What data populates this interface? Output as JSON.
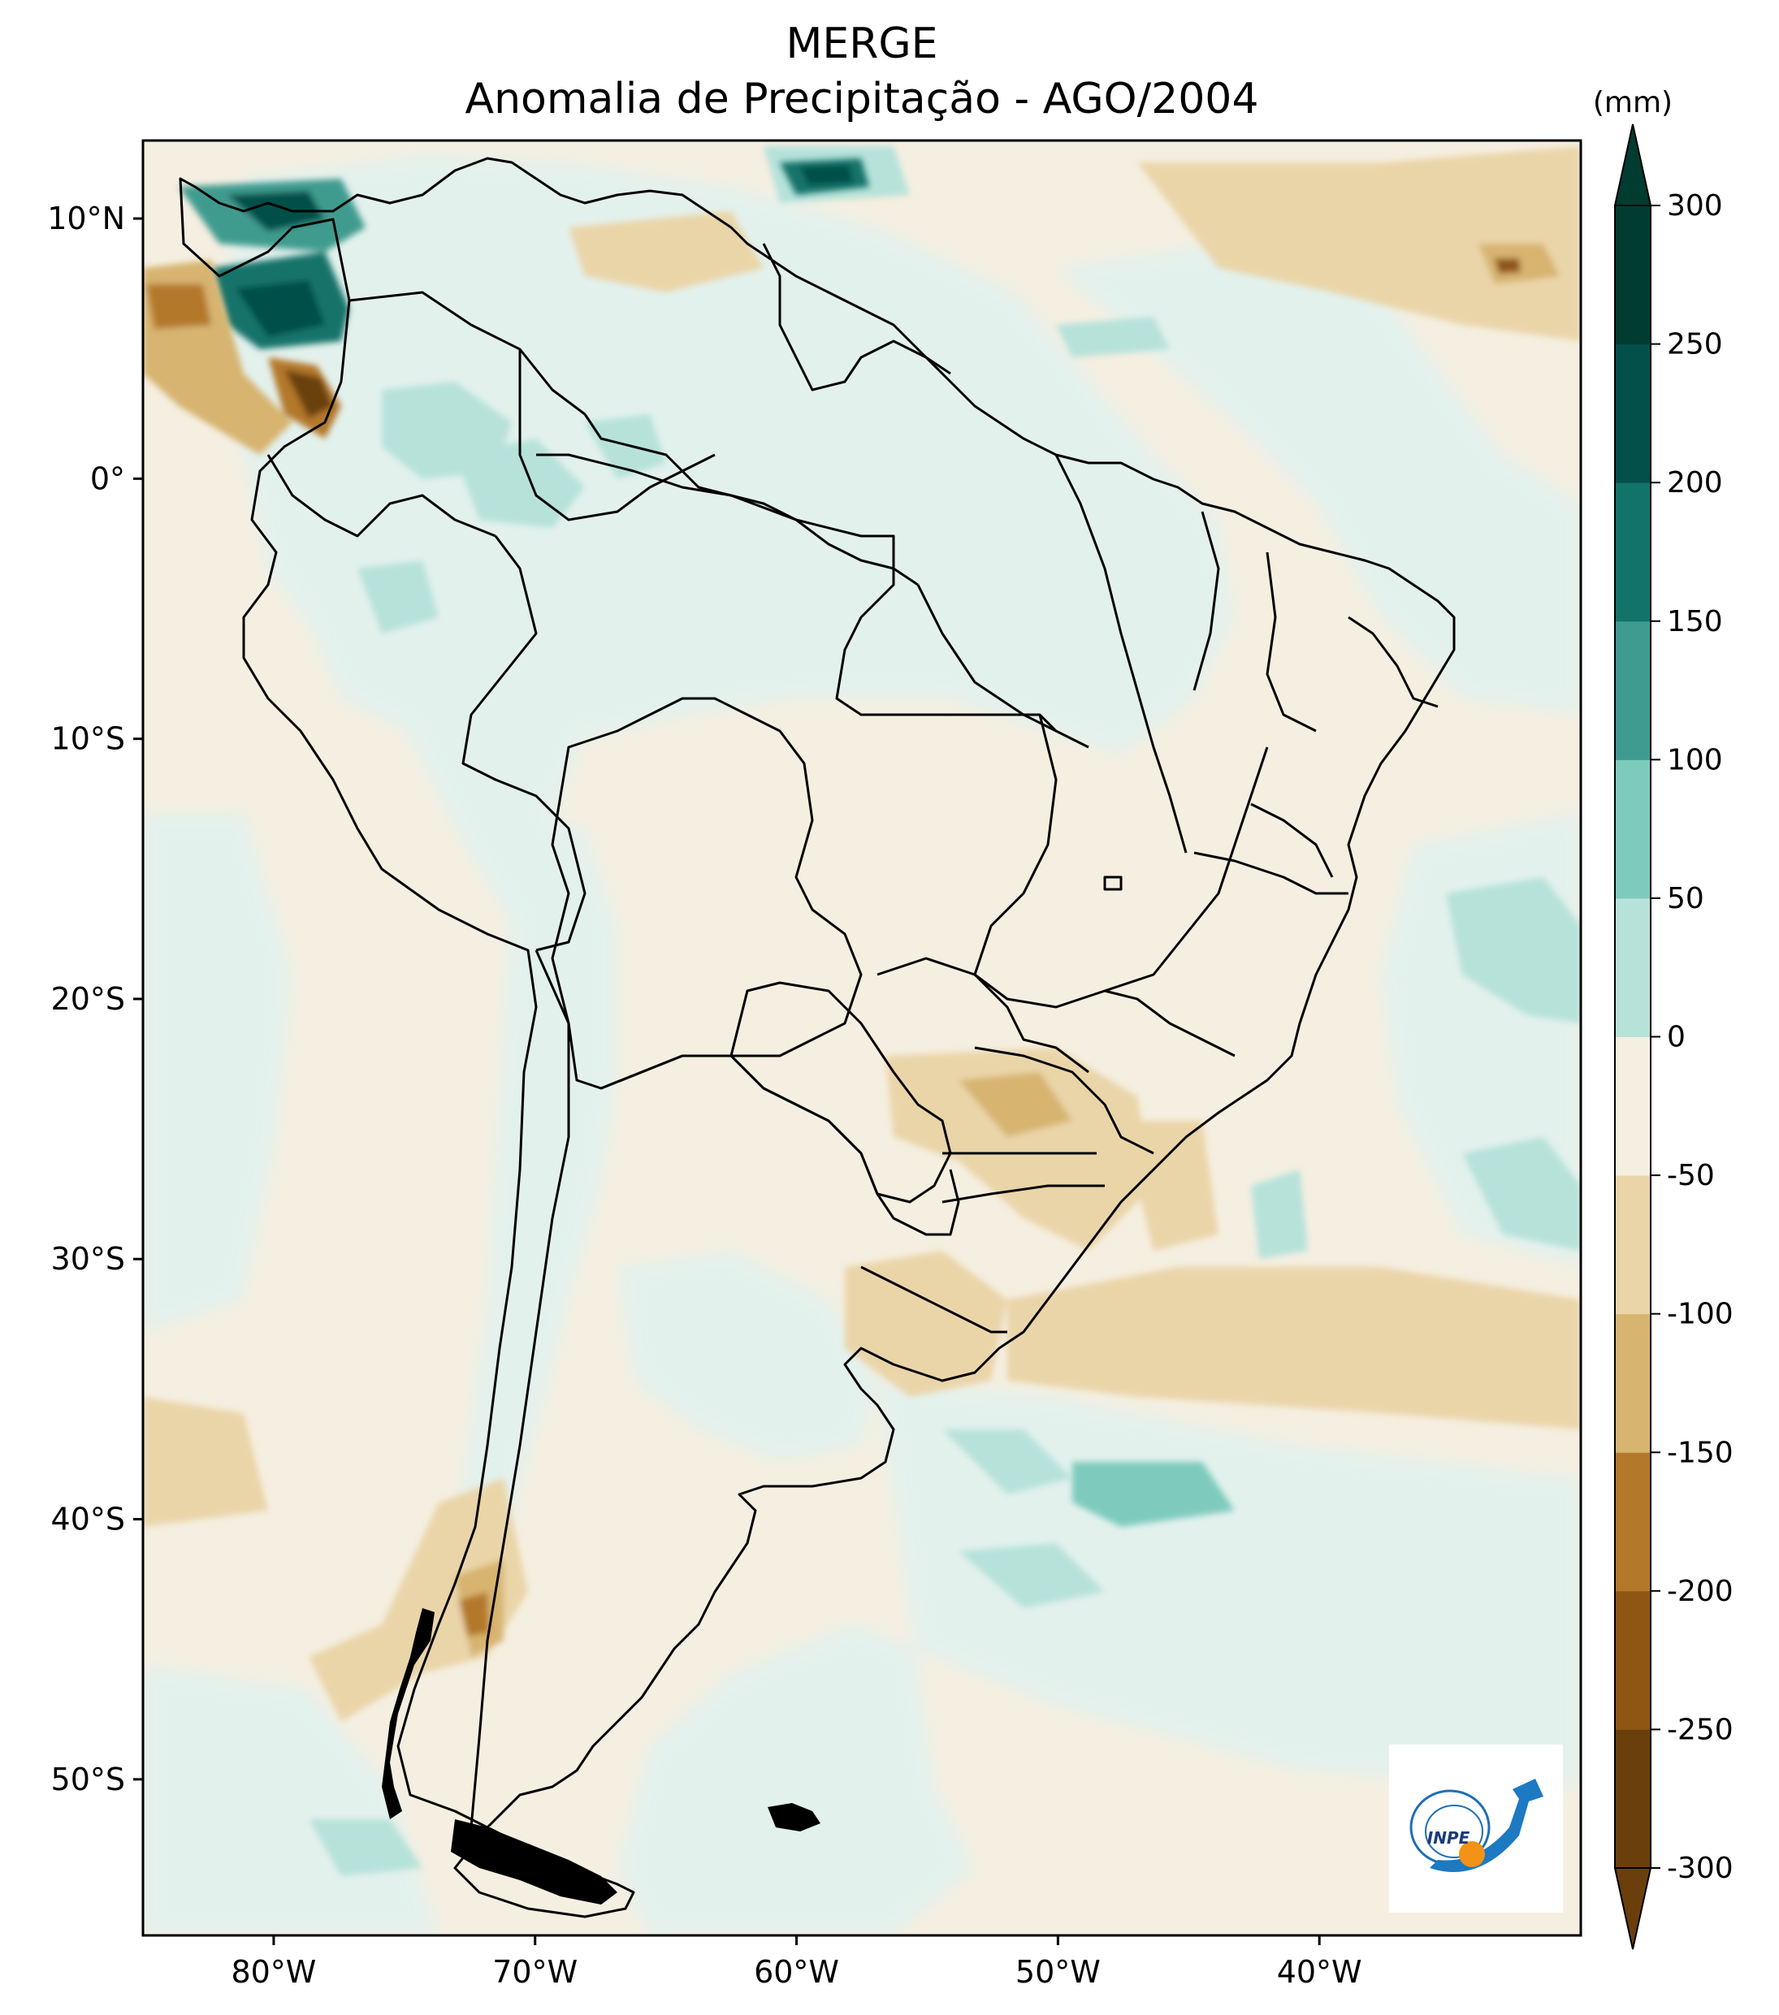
{
  "header": {
    "dataset": "MERGE",
    "subtitle": "Anomalia de Precipitação - AGO/2004"
  },
  "map": {
    "projection": "plate-carree",
    "lon_range": [
      -85,
      -30
    ],
    "lat_range": [
      -56,
      13
    ],
    "lon_ticks": [
      {
        "value": -80,
        "label": "80°W"
      },
      {
        "value": -70,
        "label": "70°W"
      },
      {
        "value": -60,
        "label": "60°W"
      },
      {
        "value": -50,
        "label": "50°W"
      },
      {
        "value": -40,
        "label": "40°W"
      }
    ],
    "lat_ticks": [
      {
        "value": 10,
        "label": "10°N"
      },
      {
        "value": 0,
        "label": "0°"
      },
      {
        "value": -10,
        "label": "10°S"
      },
      {
        "value": -20,
        "label": "20°S"
      },
      {
        "value": -30,
        "label": "30°S"
      },
      {
        "value": -40,
        "label": "40°S"
      },
      {
        "value": -50,
        "label": "50°S"
      }
    ],
    "background_class_color": "#f5efe1",
    "continent": "South America",
    "logo_text": "INPE"
  },
  "colorbar": {
    "unit": "(mm)",
    "levels": [
      -300,
      -250,
      -200,
      -150,
      -100,
      -50,
      0,
      50,
      100,
      150,
      200,
      250,
      300
    ],
    "labels": [
      "300",
      "250",
      "200",
      "150",
      "100",
      "50",
      "0",
      "-50",
      "-100",
      "-150",
      "-200",
      "-250",
      "-300"
    ],
    "colors_low_to_high": [
      "#6b3f0b",
      "#8f5513",
      "#b4782b",
      "#d7b46f",
      "#ead5a9",
      "#f5efe1",
      "#e3f1ed",
      "#b6e2da",
      "#7ecbbe",
      "#3f9b8f",
      "#12736b",
      "#03504a",
      "#003c30"
    ],
    "extend": "both"
  },
  "chart_data": {
    "type": "heatmap",
    "title": "Anomalia de Precipitação - AGO/2004",
    "units": "(mm)",
    "levels": [
      -300,
      -250,
      -200,
      -150,
      -100,
      -50,
      0,
      50,
      100,
      150,
      200,
      250,
      300
    ],
    "xlim": [
      -85,
      -30
    ],
    "ylim": [
      -56,
      13
    ],
    "features": [
      {
        "region": "Colombia Pacific coast",
        "lon": -76,
        "lat": 6,
        "anomaly_mm": 250
      },
      {
        "region": "Ecuador/Colombia coast",
        "lon": -76.5,
        "lat": 3,
        "anomaly_mm": -250
      },
      {
        "region": "Panama",
        "lon": -79,
        "lat": 9,
        "anomaly_mm": 200
      },
      {
        "region": "Caribbean north of Venezuela",
        "lon": -59,
        "lat": 11.5,
        "anomaly_mm": 250
      },
      {
        "region": "Tropical Atlantic",
        "lon": -32,
        "lat": 7.5,
        "anomaly_mm": -200
      },
      {
        "region": "Amazon basin",
        "lon": -62,
        "lat": -4,
        "anomaly_mm": 25
      },
      {
        "region": "Southern Brazil",
        "lon": -52,
        "lat": -25,
        "anomaly_mm": -75
      },
      {
        "region": "Uruguay",
        "lon": -56,
        "lat": -32,
        "anomaly_mm": -75
      },
      {
        "region": "South Atlantic",
        "lon": -48,
        "lat": -40,
        "anomaly_mm": 100
      },
      {
        "region": "Southern Chile",
        "lon": -73,
        "lat": -44,
        "anomaly_mm": -175
      },
      {
        "region": "Atlantic off NE Brazil",
        "lon": -33,
        "lat": -18,
        "anomaly_mm": 100
      }
    ]
  }
}
